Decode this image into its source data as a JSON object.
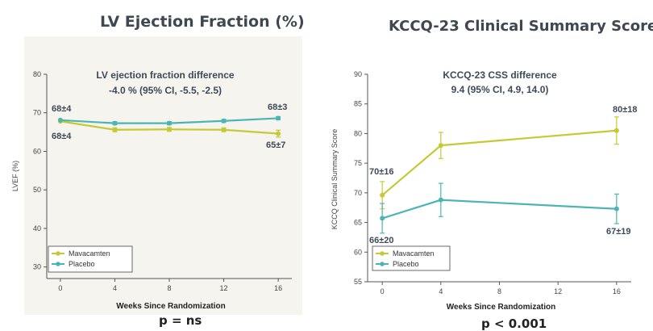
{
  "chart_data": [
    {
      "type": "line",
      "panel_title": "LV Ejection Fraction (%)",
      "annotation_title": "LV ejection fraction difference",
      "annotation_value": "-4.0 % (95% CI, -5.5, -2.5)",
      "xlabel": "Weeks Since Randomization",
      "ylabel": "LVEF (%)",
      "x": [
        0,
        4,
        8,
        12,
        16
      ],
      "xlim": [
        -1,
        17
      ],
      "ylim": [
        27,
        80
      ],
      "yticks": [
        30,
        40,
        50,
        60,
        70,
        80
      ],
      "series": [
        {
          "name": "Mavacamten",
          "color": "#c7c934",
          "values": [
            67.8,
            65.6,
            65.7,
            65.6,
            64.6
          ],
          "err": [
            0,
            0.5,
            0.5,
            0.5,
            0.9
          ]
        },
        {
          "name": "Placebo",
          "color": "#4cb5b4",
          "values": [
            68.1,
            67.3,
            67.3,
            67.9,
            68.6
          ],
          "err": [
            0,
            0.4,
            0.4,
            0.4,
            0.4
          ]
        }
      ],
      "labels": [
        "68±4",
        "68±4",
        "68±3",
        "65±7"
      ],
      "p_value": "p = ns",
      "legend": "bottom-left"
    },
    {
      "type": "line",
      "panel_title": "KCCQ-23 Clinical Summary Score",
      "annotation_title": "KCCQ-23 CSS difference",
      "annotation_value": "9.4 (95% CI, 4.9, 14.0)",
      "xlabel": "Weeks Since Randomization",
      "ylabel": "KCCQ Clinical Summary Score",
      "x": [
        0,
        4,
        16
      ],
      "xticks": [
        0,
        4,
        8,
        12,
        16
      ],
      "xlim": [
        -1,
        17
      ],
      "ylim": [
        55,
        90
      ],
      "yticks": [
        55,
        60,
        65,
        70,
        75,
        80,
        85,
        90
      ],
      "series": [
        {
          "name": "Mavacamten",
          "color": "#c7c934",
          "values": [
            69.6,
            78.0,
            80.5
          ],
          "err": [
            2.3,
            2.2,
            2.3
          ]
        },
        {
          "name": "Placebo",
          "color": "#4cb5b4",
          "values": [
            65.7,
            68.8,
            67.3
          ],
          "err": [
            2.5,
            2.8,
            2.5
          ]
        }
      ],
      "labels": [
        "70±16",
        "66±20",
        "80±18",
        "67±19"
      ],
      "p_value": "p < 0.001",
      "legend": "bottom-left"
    }
  ]
}
